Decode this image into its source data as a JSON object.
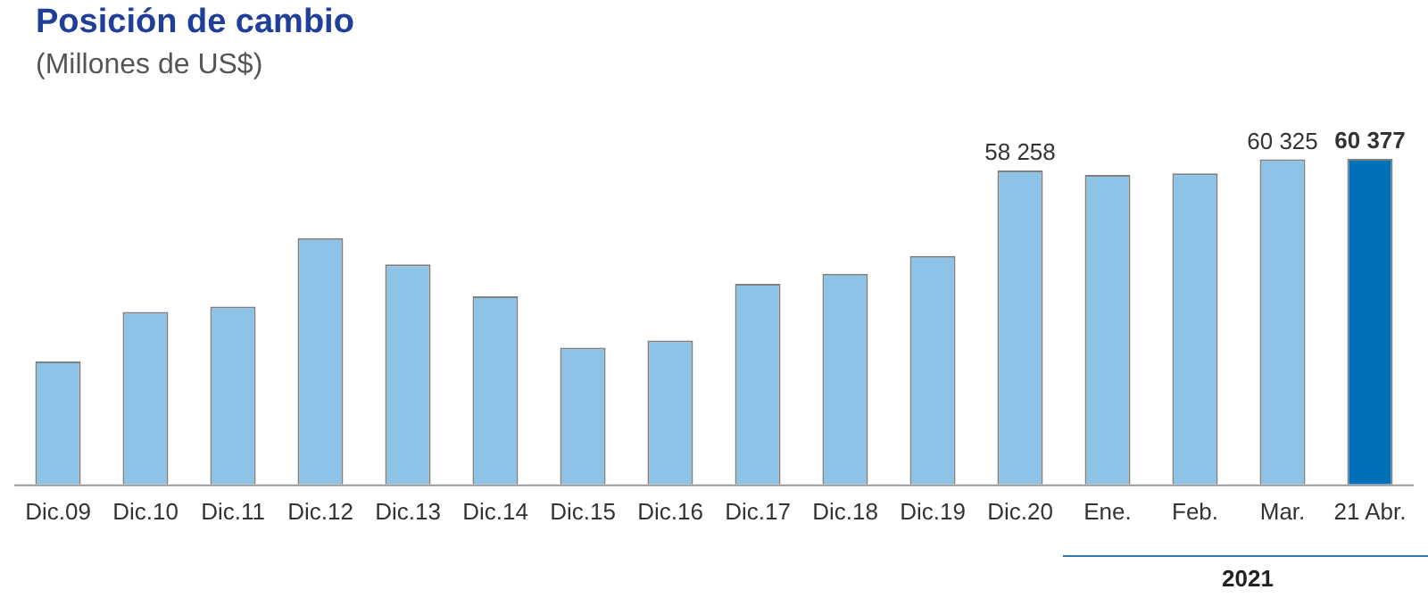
{
  "chart_data": {
    "type": "bar",
    "title": "Posición de cambio",
    "subtitle": "(Millones de US$)",
    "categories": [
      "Dic.09",
      "Dic.10",
      "Dic.11",
      "Dic.12",
      "Dic.13",
      "Dic.14",
      "Dic.15",
      "Dic.16",
      "Dic.17",
      "Dic.18",
      "Dic.19",
      "Dic.20",
      "Ene.",
      "Feb.",
      "Mar.",
      "21 Abr."
    ],
    "values": [
      22800,
      32000,
      33000,
      45700,
      40800,
      34900,
      25400,
      26700,
      37200,
      39100,
      42400,
      58258,
      57400,
      57700,
      60325,
      60377
    ],
    "value_labels": [
      null,
      null,
      null,
      null,
      null,
      null,
      null,
      null,
      null,
      null,
      null,
      "58 258",
      null,
      null,
      "60 325",
      "60 377"
    ],
    "colors": [
      "#8ec3e8",
      "#8ec3e8",
      "#8ec3e8",
      "#8ec3e8",
      "#8ec3e8",
      "#8ec3e8",
      "#8ec3e8",
      "#8ec3e8",
      "#8ec3e8",
      "#8ec3e8",
      "#8ec3e8",
      "#8ec3e8",
      "#8ec3e8",
      "#8ec3e8",
      "#8ec3e8",
      "#0070b8"
    ],
    "annotations": [
      "2021"
    ],
    "grid": false,
    "legend": false
  }
}
